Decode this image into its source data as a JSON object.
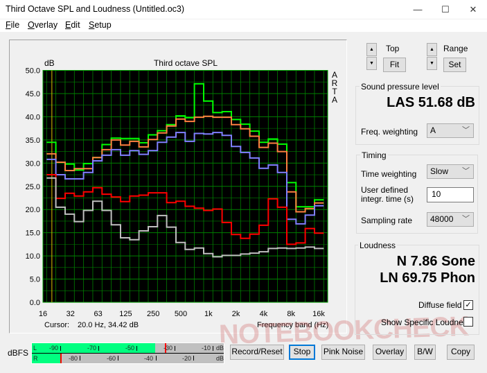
{
  "window": {
    "title": "Third Octave SPL and Loudness (Untitled.oc3)",
    "controls": {
      "minimize": "—",
      "maximize": "☐",
      "close": "✕"
    }
  },
  "menu": [
    {
      "label": "File",
      "key": "F",
      "rest": "ile"
    },
    {
      "label": "Overlay",
      "key": "O",
      "rest": "verlay"
    },
    {
      "label": "Edit",
      "key": "E",
      "rest": "dit"
    },
    {
      "label": "Setup",
      "key": "S",
      "rest": "etup"
    }
  ],
  "chart": {
    "title": "Third octave SPL",
    "ylabel": "dB",
    "brand": [
      "A",
      "R",
      "T",
      "A"
    ],
    "cursor_label": "Cursor:",
    "cursor_value": "20.0 Hz, 34.42 dB",
    "xlabel": "Frequency band (Hz)"
  },
  "chart_data": {
    "type": "line",
    "step": true,
    "title": "Third octave SPL",
    "ylabel": "dB",
    "xlabel": "Frequency band (Hz)",
    "ylim": [
      0,
      50
    ],
    "yticks": [
      "0.0",
      "5.0",
      "10.0",
      "15.0",
      "20.0",
      "25.0",
      "30.0",
      "35.0",
      "40.0",
      "45.0",
      "50.0"
    ],
    "xscale": "log",
    "xticks": [
      "16",
      "32",
      "63",
      "125",
      "250",
      "500",
      "1k",
      "2k",
      "4k",
      "8k",
      "16k"
    ],
    "grid": true,
    "background": "#000000",
    "grid_color": "#008000",
    "cursor_hz": 20,
    "bands": [
      "20",
      "25",
      "31.5",
      "40",
      "50",
      "63",
      "80",
      "100",
      "125",
      "160",
      "200",
      "250",
      "315",
      "400",
      "500",
      "630",
      "800",
      "1k",
      "1.25k",
      "1.6k",
      "2k",
      "2.5k",
      "3.15k",
      "4k",
      "5k",
      "6.3k",
      "8k",
      "10k",
      "12.5k",
      "16k"
    ],
    "series": [
      {
        "color": "#00ff00",
        "values": [
          34.5,
          30.2,
          29.8,
          28.5,
          29.9,
          31.2,
          34.0,
          35.4,
          35.3,
          35.3,
          34.4,
          36.1,
          37.0,
          38.3,
          40.2,
          39.8,
          47.1,
          43.4,
          40.9,
          41.1,
          39.4,
          38.4,
          36.9,
          34.5,
          35.2,
          34.1,
          25.8,
          20.6,
          20.6,
          22.1
        ]
      },
      {
        "color": "#ff8040",
        "values": [
          32.0,
          30.2,
          28.4,
          28.8,
          28.8,
          31.2,
          32.9,
          35.0,
          33.9,
          34.7,
          33.5,
          35.1,
          36.5,
          38.0,
          39.5,
          39.0,
          39.9,
          40.1,
          39.9,
          39.9,
          38.3,
          37.4,
          35.8,
          33.4,
          34.3,
          32.5,
          23.8,
          19.5,
          20.2,
          21.4
        ]
      },
      {
        "color": "#8080ff",
        "values": [
          30.8,
          27.5,
          26.6,
          26.6,
          28.0,
          30.5,
          31.7,
          32.9,
          31.7,
          32.7,
          31.9,
          32.7,
          34.5,
          35.6,
          36.6,
          34.7,
          36.4,
          36.3,
          36.6,
          36.0,
          33.6,
          32.3,
          31.1,
          28.9,
          29.6,
          28.0,
          17.9,
          16.9,
          18.8,
          20.8
        ]
      },
      {
        "color": "#ff0000",
        "values": [
          27.5,
          22.4,
          23.5,
          22.9,
          23.8,
          24.7,
          23.3,
          22.7,
          21.7,
          22.9,
          23.1,
          23.6,
          23.6,
          21.5,
          21.8,
          20.7,
          20.3,
          19.8,
          20.1,
          17.2,
          14.6,
          13.8,
          14.7,
          16.6,
          22.3,
          20.5,
          12.5,
          12.8,
          15.9,
          14.9
        ]
      },
      {
        "color": "#c0c0c0",
        "values": [
          26.8,
          20.5,
          19.0,
          17.4,
          19.8,
          21.8,
          19.8,
          16.7,
          13.9,
          13.5,
          15.4,
          16.3,
          18.7,
          16.2,
          12.9,
          11.4,
          11.7,
          10.5,
          9.8,
          10.1,
          10.1,
          10.4,
          10.6,
          10.9,
          11.6,
          11.7,
          11.6,
          11.7,
          11.9,
          11.6
        ]
      }
    ]
  },
  "controls": {
    "top_label": "Top",
    "fit": "Fit",
    "range_label": "Range",
    "set": "Set",
    "up": "▲",
    "down": "▼"
  },
  "spl": {
    "group": "Sound pressure level",
    "value": "LAS 51.68 dB",
    "freq_weighting_label": "Freq. weighting",
    "freq_weighting": "A"
  },
  "timing": {
    "group": "Timing",
    "time_weighting_label": "Time weighting",
    "time_weighting": "Slow",
    "integr_label_1": "User defined",
    "integr_label_2": "integr. time (s)",
    "integr_time": "10",
    "sampling_rate_label": "Sampling rate",
    "sampling_rate": "48000"
  },
  "loudness": {
    "group": "Loudness",
    "n": "N 7.86 Sone",
    "ln": "LN 69.75 Phon",
    "diffuse_label": "Diffuse field",
    "diffuse_checked": "✓",
    "specific_label": "Show Specific Loudness"
  },
  "meter": {
    "label": "dBFS",
    "L": "L",
    "R": "R",
    "unit": "dB",
    "l_ticks": [
      "-90",
      "-70",
      "-50",
      "-30",
      "-10"
    ],
    "r_ticks": [
      "-80",
      "-60",
      "-40",
      "-20"
    ],
    "l_level_dbfs": -35,
    "l_peak_dbfs": -30,
    "r_level_dbfs": -85,
    "r_peak_dbfs": -85,
    "fill_color": "#00ff80",
    "peak_color": "#ff0000"
  },
  "buttons": {
    "record": "Record/Reset",
    "stop": "Stop",
    "pink": "Pink Noise",
    "overlay": "Overlay",
    "bw": "B/W",
    "copy": "Copy"
  },
  "watermark": "NOTEBOOKCHECK"
}
